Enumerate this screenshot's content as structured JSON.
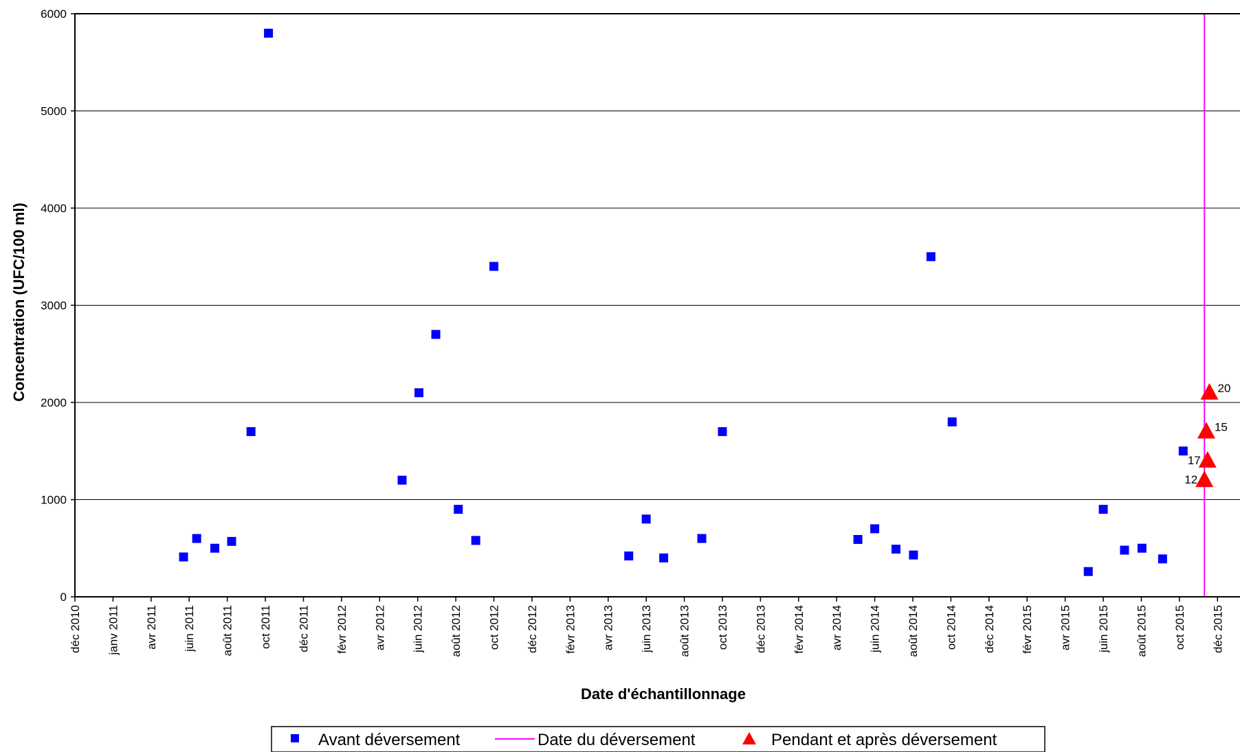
{
  "chart_data": {
    "type": "scatter",
    "xlabel": "Date d'échantillonnage",
    "ylabel": "Concentration (UFC/100 ml)",
    "ylim": [
      0,
      6000
    ],
    "y_ticks": [
      0,
      1000,
      2000,
      3000,
      4000,
      5000,
      6000
    ],
    "grid": "horizontal",
    "x_range": [
      "2010-12-01",
      "2016-01-10"
    ],
    "x_ticks": [
      {
        "date": "2010-12-01",
        "label": "déc 2010"
      },
      {
        "date": "2011-01-31",
        "label": "janv 2011"
      },
      {
        "date": "2011-04-02",
        "label": "avr 2011"
      },
      {
        "date": "2011-06-02",
        "label": "juin 2011"
      },
      {
        "date": "2011-08-02",
        "label": "août 2011"
      },
      {
        "date": "2011-10-02",
        "label": "oct 2011"
      },
      {
        "date": "2011-12-02",
        "label": "déc 2011"
      },
      {
        "date": "2012-02-01",
        "label": "févr 2012"
      },
      {
        "date": "2012-04-02",
        "label": "avr 2012"
      },
      {
        "date": "2012-06-02",
        "label": "juin 2012"
      },
      {
        "date": "2012-08-02",
        "label": "août 2012"
      },
      {
        "date": "2012-10-02",
        "label": "oct 2012"
      },
      {
        "date": "2012-12-02",
        "label": "déc 2012"
      },
      {
        "date": "2013-02-01",
        "label": "févr 2013"
      },
      {
        "date": "2013-04-03",
        "label": "avr 2013"
      },
      {
        "date": "2013-06-03",
        "label": "juin 2013"
      },
      {
        "date": "2013-08-03",
        "label": "août 2013"
      },
      {
        "date": "2013-10-03",
        "label": "oct 2013"
      },
      {
        "date": "2013-12-03",
        "label": "déc 2013"
      },
      {
        "date": "2014-02-02",
        "label": "févr 2014"
      },
      {
        "date": "2014-04-04",
        "label": "avr 2014"
      },
      {
        "date": "2014-06-04",
        "label": "juin 2014"
      },
      {
        "date": "2014-08-04",
        "label": "août 2014"
      },
      {
        "date": "2014-10-04",
        "label": "oct 2014"
      },
      {
        "date": "2014-12-04",
        "label": "déc 2014"
      },
      {
        "date": "2015-02-03",
        "label": "févr 2015"
      },
      {
        "date": "2015-04-05",
        "label": "avr 2015"
      },
      {
        "date": "2015-06-05",
        "label": "juin 2015"
      },
      {
        "date": "2015-08-05",
        "label": "août 2015"
      },
      {
        "date": "2015-10-05",
        "label": "oct 2015"
      },
      {
        "date": "2015-12-05",
        "label": "déc 2015"
      }
    ],
    "series": [
      {
        "name": "Avant déversement",
        "marker": "square",
        "color": "#0000ff",
        "points": [
          {
            "x": "2011-05-24",
            "y": 410
          },
          {
            "x": "2011-06-14",
            "y": 600
          },
          {
            "x": "2011-07-13",
            "y": 500
          },
          {
            "x": "2011-08-09",
            "y": 570
          },
          {
            "x": "2011-09-09",
            "y": 1700
          },
          {
            "x": "2011-10-07",
            "y": 5800
          },
          {
            "x": "2012-05-08",
            "y": 1200
          },
          {
            "x": "2012-06-04",
            "y": 2100
          },
          {
            "x": "2012-07-01",
            "y": 2700
          },
          {
            "x": "2012-08-06",
            "y": 900
          },
          {
            "x": "2012-09-03",
            "y": 580
          },
          {
            "x": "2012-10-02",
            "y": 3400
          },
          {
            "x": "2013-05-06",
            "y": 420
          },
          {
            "x": "2013-06-03",
            "y": 800
          },
          {
            "x": "2013-07-01",
            "y": 400
          },
          {
            "x": "2013-08-31",
            "y": 600
          },
          {
            "x": "2013-10-03",
            "y": 1700
          },
          {
            "x": "2014-05-08",
            "y": 590
          },
          {
            "x": "2014-06-04",
            "y": 700
          },
          {
            "x": "2014-07-08",
            "y": 490
          },
          {
            "x": "2014-08-05",
            "y": 430
          },
          {
            "x": "2014-09-02",
            "y": 3500
          },
          {
            "x": "2014-10-06",
            "y": 1800
          },
          {
            "x": "2015-05-12",
            "y": 260
          },
          {
            "x": "2015-06-05",
            "y": 900
          },
          {
            "x": "2015-07-09",
            "y": 480
          },
          {
            "x": "2015-08-06",
            "y": 500
          },
          {
            "x": "2015-09-08",
            "y": 390
          },
          {
            "x": "2015-10-11",
            "y": 1500
          }
        ]
      },
      {
        "name": "Date du déversement",
        "marker": "vline",
        "color": "#ff00ff",
        "x": "2015-11-14"
      },
      {
        "name": "Pendant et après déversement",
        "marker": "triangle",
        "color": "#ff0000",
        "points": [
          {
            "x": "2015-11-14",
            "y": 1200,
            "label": "12"
          },
          {
            "x": "2015-11-17",
            "y": 1700,
            "label": "15"
          },
          {
            "x": "2015-11-19",
            "y": 1400,
            "label": "17"
          },
          {
            "x": "2015-11-22",
            "y": 2100,
            "label": "20"
          }
        ]
      }
    ],
    "legend": {
      "position": "bottom-center",
      "entries": [
        "Avant déversement",
        "Date du déversement",
        "Pendant et après déversement"
      ]
    }
  }
}
